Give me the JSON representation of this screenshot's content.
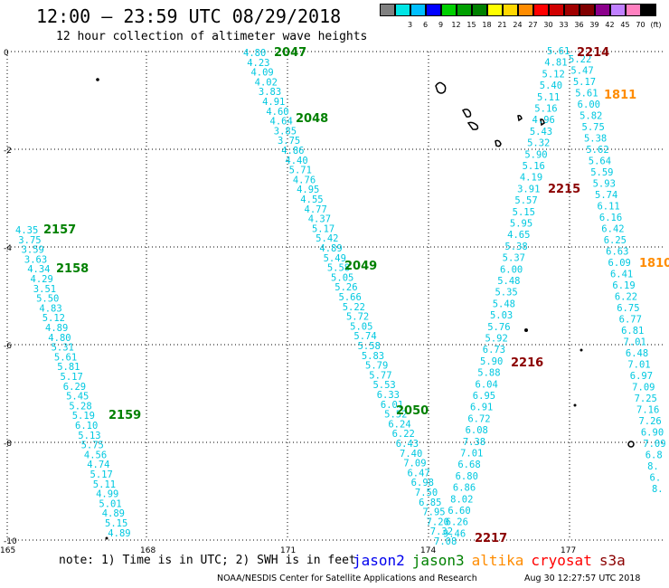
{
  "title": "12:00 – 23:59 UTC 08/29/2018",
  "subtitle": "12 hour collection of altimeter wave heights",
  "scale": {
    "unit_label": "(ft)",
    "bins": [
      {
        "label": "",
        "color": "#808080"
      },
      {
        "label": "3",
        "color": "#00e5e5"
      },
      {
        "label": "6",
        "color": "#00bfff"
      },
      {
        "label": "9",
        "color": "#0000ff"
      },
      {
        "label": "12",
        "color": "#00d000"
      },
      {
        "label": "15",
        "color": "#00a000"
      },
      {
        "label": "18",
        "color": "#008000"
      },
      {
        "label": "21",
        "color": "#ffff00"
      },
      {
        "label": "24",
        "color": "#ffd700"
      },
      {
        "label": "27",
        "color": "#ff8c00"
      },
      {
        "label": "30",
        "color": "#ff0000"
      },
      {
        "label": "33",
        "color": "#d00000"
      },
      {
        "label": "36",
        "color": "#a00000"
      },
      {
        "label": "39",
        "color": "#800000"
      },
      {
        "label": "42",
        "color": "#8b008b"
      },
      {
        "label": "45",
        "color": "#c080ff"
      },
      {
        "label": "70",
        "color": "#ff80c0"
      },
      {
        "label": "(ft)",
        "color": "#000000"
      }
    ]
  },
  "axes": {
    "lat_labels": [
      "0",
      "-2",
      "-4",
      "-6",
      "-8",
      "-10"
    ],
    "lon_labels": [
      "165",
      "168",
      "171",
      "174",
      "177"
    ]
  },
  "pass_labels": [
    {
      "text": "2047",
      "sat": "jason3"
    },
    {
      "text": "2048",
      "sat": "jason3"
    },
    {
      "text": "2049",
      "sat": "jason3"
    },
    {
      "text": "2050",
      "sat": "jason3"
    },
    {
      "text": "2157",
      "sat": "jason3"
    },
    {
      "text": "2158",
      "sat": "jason3"
    },
    {
      "text": "2159",
      "sat": "jason3"
    },
    {
      "text": "2214",
      "sat": "cryosat"
    },
    {
      "text": "2215",
      "sat": "cryosat"
    },
    {
      "text": "2216",
      "sat": "cryosat"
    },
    {
      "text": "2217",
      "sat": "cryosat"
    },
    {
      "text": "1811",
      "sat": "altika"
    },
    {
      "text": "1810",
      "sat": "altika"
    }
  ],
  "tracks": [
    {
      "name": "track-2157",
      "values": [
        "4.35",
        "3.75",
        "3.59",
        "3.63",
        "4.34",
        "4.29",
        "3.51",
        "5.50",
        "4.83",
        "5.12",
        "4.89",
        "4.80",
        "5.31",
        "5.61",
        "5.81",
        "5.17",
        "6.29",
        "5.45",
        "5.28",
        "5.19",
        "6.10",
        "5.13",
        "5.75",
        "4.56",
        "4.74",
        "5.17",
        "5.11",
        "4.99",
        "5.01",
        "4.89",
        "5.15",
        "4.89"
      ]
    },
    {
      "name": "track-2047",
      "values": [
        "4.80",
        "4.23",
        "4.09",
        "4.02",
        "3.83",
        "4.91",
        "4.60",
        "4.64",
        "3.85",
        "3.75",
        "4.86",
        "4.40",
        "5.71",
        "4.76",
        "4.95",
        "4.55",
        "4.77",
        "4.37",
        "5.17",
        "5.42",
        "4.89",
        "5.49",
        "5.58",
        "5.05",
        "5.26",
        "5.66",
        "5.22",
        "5.72",
        "5.05",
        "5.74",
        "5.58",
        "5.83",
        "5.79",
        "5.77",
        "5.53",
        "6.33",
        "6.01",
        "5.52",
        "6.24",
        "6.22",
        "6.43",
        "7.40",
        "7.09",
        "6.47",
        "6.98",
        "7.50",
        "6.85",
        "7.95",
        "7.20",
        "7.32",
        "7.08"
      ]
    },
    {
      "name": "track-2214",
      "values": [
        "5.61",
        "4.81",
        "5.12",
        "5.40",
        "5.11",
        "5.16",
        "4.96",
        "5.43",
        "5.32",
        "5.90",
        "5.16",
        "4.19",
        "3.91",
        "5.57",
        "5.15",
        "5.95",
        "4.65",
        "5.38",
        "5.37",
        "6.00",
        "5.48",
        "5.35",
        "5.48",
        "5.03",
        "5.76",
        "5.92",
        "6.73",
        "5.90",
        "5.88",
        "6.04",
        "6.95",
        "6.91",
        "6.72",
        "6.08",
        "7.38",
        "7.01",
        "6.68",
        "6.80",
        "6.86",
        "8.02",
        "6.60",
        "6.26",
        "9.46"
      ]
    },
    {
      "name": "track-1811",
      "values": [
        "5.22",
        "5.47",
        "5.17",
        "5.61",
        "6.00",
        "5.82",
        "5.75",
        "5.38",
        "5.62",
        "5.64",
        "5.59",
        "5.93",
        "5.74",
        "6.11",
        "6.16",
        "6.42",
        "6.25",
        "6.63",
        "6.09",
        "6.41",
        "6.19",
        "6.22",
        "6.75",
        "6.77",
        "6.81",
        "7.01",
        "6.48",
        "7.01",
        "6.97",
        "7.09",
        "7.25",
        "7.16",
        "7.26",
        "6.90",
        "7.09",
        "6.8",
        "8.",
        "6.",
        "8."
      ]
    }
  ],
  "note": "note:  1) Time is in UTC; 2) SWH is in feet",
  "satellites": [
    {
      "name": "jason2",
      "color": "#0000ee"
    },
    {
      "name": "jason3",
      "color": "#008000"
    },
    {
      "name": "altika",
      "color": "#ff8c00"
    },
    {
      "name": "cryosat",
      "color": "#ff0000"
    },
    {
      "name": "s3a",
      "color": "#8b0000"
    }
  ],
  "credit": "NOAA/NESDIS Center for Satellite Applications and Research",
  "timestamp": "Aug 30 12:27:57 UTC 2018"
}
